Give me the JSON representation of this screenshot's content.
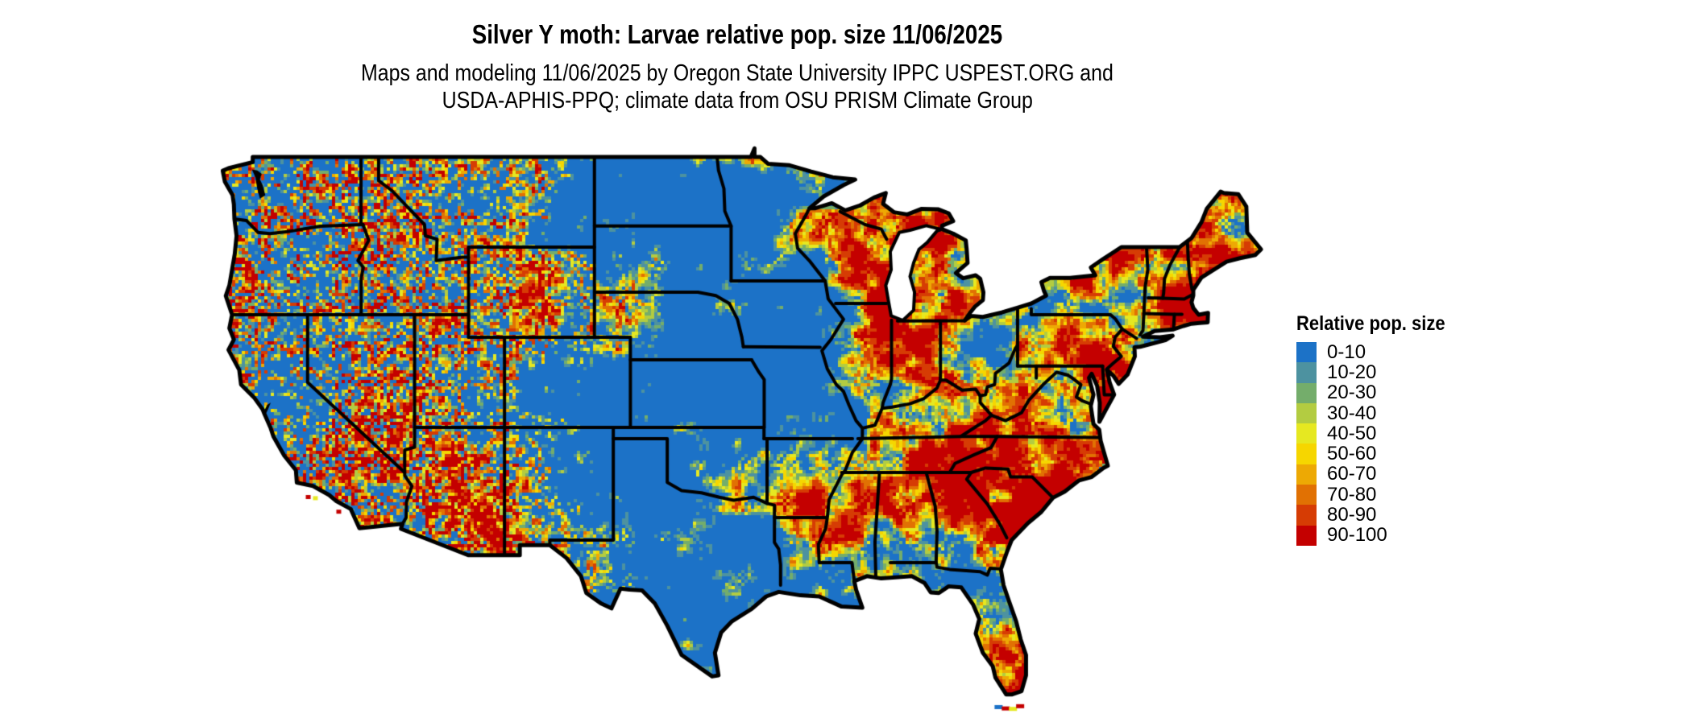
{
  "header": {
    "title": "Silver Y moth: Larvae relative pop. size 11/06/2025",
    "subtitle_line1": "Maps and modeling 11/06/2025 by Oregon State University IPPC USPEST.ORG and",
    "subtitle_line2": "USDA-APHIS-PPQ; climate data from OSU PRISM Climate Group"
  },
  "legend": {
    "title": "Relative pop. size",
    "items": [
      {
        "label": "0-10",
        "color": "#1c72c7"
      },
      {
        "label": "10-20",
        "color": "#4d92a0"
      },
      {
        "label": "20-30",
        "color": "#74ad6b"
      },
      {
        "label": "30-40",
        "color": "#b3cc41"
      },
      {
        "label": "40-50",
        "color": "#e6e821"
      },
      {
        "label": "50-60",
        "color": "#f6d600"
      },
      {
        "label": "60-70",
        "color": "#eda904"
      },
      {
        "label": "70-80",
        "color": "#e17103"
      },
      {
        "label": "80-90",
        "color": "#d63c04"
      },
      {
        "label": "90-100",
        "color": "#c40000"
      }
    ]
  },
  "map": {
    "border_color": "#000000",
    "water_color": "#ffffff"
  }
}
